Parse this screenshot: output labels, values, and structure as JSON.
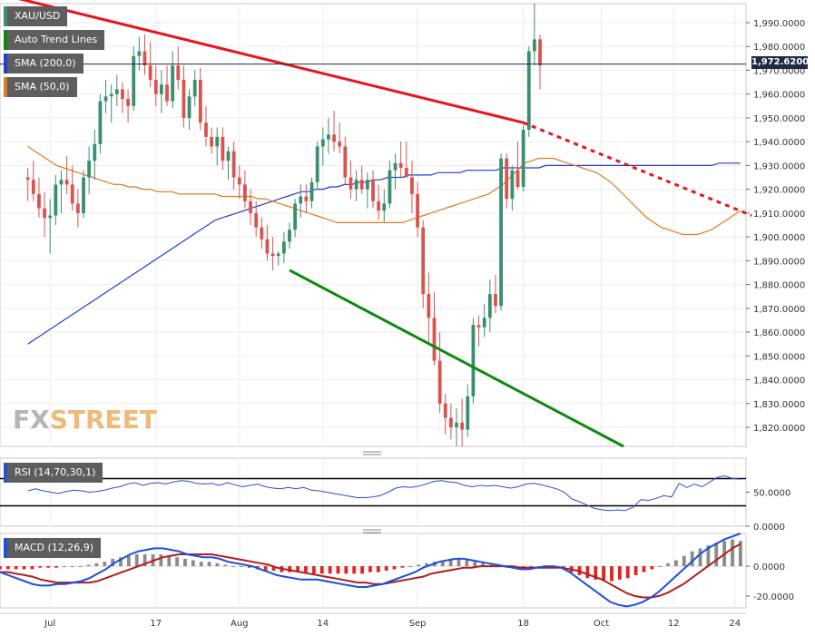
{
  "symbol": "XAU/USD",
  "legend": {
    "trend_lines": "Auto Trend Lines",
    "sma200": "SMA (200,0)",
    "sma50": "SMA (50,0)",
    "rsi": "RSI (14,70,30,1)",
    "macd": "MACD (12,26,9)"
  },
  "colors": {
    "bull": "#3a8f6e",
    "bear": "#d9534f",
    "sma200": "#1f3fcf",
    "sma50": "#e07a1f",
    "resistance": "#e8141c",
    "support": "#0d8a0d",
    "rsi": "#2b4fd6",
    "macd_line": "#1a4fe0",
    "signal_line": "#b21c1c",
    "hist_pos": "#8a8a8a",
    "hist_neg": "#e82020"
  },
  "logo": {
    "part1": "FX",
    "part2": "STREET"
  },
  "last_price": "1,972.6200",
  "chart_data": [
    {
      "type": "candlestick",
      "title": "XAU/USD",
      "y_ticks": [
        "1,990.0000",
        "1,980.0000",
        "1,970.0000",
        "1,960.0000",
        "1,950.0000",
        "1,940.0000",
        "1,930.0000",
        "1,920.0000",
        "1,910.0000",
        "1,900.0000",
        "1,890.0000",
        "1,880.0000",
        "1,870.0000",
        "1,860.0000",
        "1,850.0000",
        "1,840.0000",
        "1,830.0000",
        "1,820.0000"
      ],
      "x_ticks": [
        {
          "label": "Jul",
          "index": 4
        },
        {
          "label": "17",
          "index": 23
        },
        {
          "label": "Aug",
          "index": 38
        },
        {
          "label": "14",
          "index": 53
        },
        {
          "label": "Sep",
          "index": 70
        },
        {
          "label": "18",
          "index": 89
        },
        {
          "label": "Oct",
          "index": 103
        },
        {
          "label": "12",
          "index": 116
        },
        {
          "label": "24",
          "index": 127
        }
      ],
      "ylim": [
        1812,
        1998
      ],
      "ohlc": [
        [
          1925,
          1929,
          1915,
          1924
        ],
        [
          1924,
          1932,
          1915,
          1918
        ],
        [
          1918,
          1925,
          1908,
          1912
        ],
        [
          1912,
          1919,
          1900,
          1908
        ],
        [
          1908,
          1916,
          1893,
          1909
        ],
        [
          1909,
          1926,
          1905,
          1922
        ],
        [
          1922,
          1928,
          1910,
          1924
        ],
        [
          1924,
          1934,
          1918,
          1922
        ],
        [
          1922,
          1930,
          1911,
          1914
        ],
        [
          1914,
          1920,
          1904,
          1910
        ],
        [
          1910,
          1928,
          1908,
          1925
        ],
        [
          1925,
          1938,
          1918,
          1932
        ],
        [
          1932,
          1945,
          1924,
          1939
        ],
        [
          1939,
          1960,
          1935,
          1957
        ],
        [
          1957,
          1966,
          1952,
          1959
        ],
        [
          1959,
          1964,
          1948,
          1960
        ],
        [
          1960,
          1968,
          1955,
          1962
        ],
        [
          1962,
          1965,
          1952,
          1958
        ],
        [
          1958,
          1962,
          1948,
          1955
        ],
        [
          1955,
          1980,
          1953,
          1976
        ],
        [
          1976,
          1984,
          1970,
          1978
        ],
        [
          1978,
          1985,
          1968,
          1972
        ],
        [
          1972,
          1982,
          1963,
          1966
        ],
        [
          1966,
          1972,
          1955,
          1960
        ],
        [
          1960,
          1970,
          1952,
          1964
        ],
        [
          1964,
          1972,
          1955,
          1957
        ],
        [
          1957,
          1978,
          1954,
          1972
        ],
        [
          1972,
          1980,
          1962,
          1966
        ],
        [
          1966,
          1972,
          1946,
          1950
        ],
        [
          1950,
          1962,
          1945,
          1959
        ],
        [
          1959,
          1970,
          1955,
          1966
        ],
        [
          1966,
          1971,
          1945,
          1948
        ],
        [
          1948,
          1955,
          1938,
          1942
        ],
        [
          1942,
          1946,
          1935,
          1938
        ],
        [
          1938,
          1946,
          1930,
          1942
        ],
        [
          1942,
          1946,
          1928,
          1932
        ],
        [
          1932,
          1938,
          1924,
          1936
        ],
        [
          1936,
          1940,
          1920,
          1925
        ],
        [
          1925,
          1930,
          1916,
          1922
        ],
        [
          1922,
          1928,
          1912,
          1915
        ],
        [
          1915,
          1920,
          1905,
          1910
        ],
        [
          1910,
          1915,
          1900,
          1904
        ],
        [
          1904,
          1908,
          1895,
          1899
        ],
        [
          1899,
          1905,
          1890,
          1893
        ],
        [
          1893,
          1900,
          1886,
          1892
        ],
        [
          1892,
          1894,
          1888,
          1893
        ],
        [
          1893,
          1902,
          1889,
          1898
        ],
        [
          1898,
          1906,
          1895,
          1903
        ],
        [
          1903,
          1916,
          1900,
          1914
        ],
        [
          1914,
          1922,
          1908,
          1917
        ],
        [
          1917,
          1922,
          1910,
          1915
        ],
        [
          1915,
          1925,
          1912,
          1923
        ],
        [
          1923,
          1940,
          1920,
          1938
        ],
        [
          1938,
          1946,
          1930,
          1941
        ],
        [
          1941,
          1950,
          1935,
          1943
        ],
        [
          1943,
          1953,
          1936,
          1940
        ],
        [
          1940,
          1948,
          1935,
          1938
        ],
        [
          1938,
          1942,
          1922,
          1925
        ],
        [
          1925,
          1932,
          1916,
          1920
        ],
        [
          1920,
          1928,
          1915,
          1924
        ],
        [
          1924,
          1930,
          1918,
          1920
        ],
        [
          1920,
          1927,
          1912,
          1924
        ],
        [
          1924,
          1928,
          1912,
          1915
        ],
        [
          1915,
          1922,
          1907,
          1911
        ],
        [
          1911,
          1920,
          1906,
          1914
        ],
        [
          1914,
          1932,
          1912,
          1928
        ],
        [
          1928,
          1935,
          1920,
          1931
        ],
        [
          1931,
          1940,
          1925,
          1929
        ],
        [
          1929,
          1940,
          1926,
          1925
        ],
        [
          1925,
          1932,
          1910,
          1918
        ],
        [
          1918,
          1923,
          1900,
          1904
        ],
        [
          1904,
          1907,
          1870,
          1876
        ],
        [
          1876,
          1885,
          1855,
          1866
        ],
        [
          1866,
          1877,
          1846,
          1848
        ],
        [
          1848,
          1860,
          1826,
          1830
        ],
        [
          1830,
          1834,
          1817,
          1824
        ],
        [
          1824,
          1830,
          1815,
          1820
        ],
        [
          1820,
          1828,
          1812,
          1822
        ],
        [
          1822,
          1832,
          1812,
          1819
        ],
        [
          1819,
          1838,
          1816,
          1833
        ],
        [
          1833,
          1866,
          1830,
          1863
        ],
        [
          1863,
          1867,
          1854,
          1862
        ],
        [
          1862,
          1872,
          1858,
          1866
        ],
        [
          1866,
          1882,
          1860,
          1876
        ],
        [
          1876,
          1884,
          1868,
          1871
        ],
        [
          1871,
          1935,
          1869,
          1933
        ],
        [
          1933,
          1935,
          1912,
          1916
        ],
        [
          1916,
          1930,
          1911,
          1928
        ],
        [
          1928,
          1940,
          1920,
          1921
        ],
        [
          1921,
          1947,
          1919,
          1945
        ],
        [
          1945,
          1980,
          1942,
          1978
        ],
        [
          1978,
          1998,
          1972,
          1983
        ],
        [
          1983,
          1985,
          1962,
          1972
        ]
      ],
      "sma50": [
        1938,
        1936,
        1934,
        1932,
        1930,
        1929,
        1928,
        1927,
        1926,
        1925,
        1924,
        1923,
        1922,
        1922,
        1921,
        1921,
        1920,
        1920,
        1919,
        1919,
        1919,
        1918,
        1918,
        1918,
        1918,
        1918,
        1918,
        1917,
        1917,
        1917,
        1917,
        1917,
        1916,
        1916,
        1915,
        1914,
        1913,
        1912,
        1911,
        1910,
        1909,
        1908,
        1907,
        1906,
        1906,
        1906,
        1906,
        1906,
        1906,
        1906,
        1906,
        1906,
        1906,
        1907,
        1908,
        1909,
        1910,
        1911,
        1912,
        1913,
        1914,
        1915,
        1916,
        1917,
        1918,
        1920,
        1922,
        1925,
        1928,
        1931,
        1932,
        1933,
        1933,
        1933,
        1932,
        1931,
        1930,
        1929,
        1928,
        1927,
        1925,
        1923,
        1920,
        1917,
        1914,
        1911,
        1908,
        1906,
        1904,
        1903,
        1902,
        1901,
        1901,
        1901,
        1902,
        1903,
        1905,
        1907,
        1909,
        1911
      ],
      "sma200": [
        1855,
        1857,
        1859,
        1861,
        1863,
        1865,
        1867,
        1869,
        1871,
        1873,
        1875,
        1877,
        1879,
        1881,
        1883,
        1885,
        1887,
        1889,
        1891,
        1893,
        1895,
        1897,
        1899,
        1901,
        1903,
        1905,
        1907,
        1908,
        1909,
        1910,
        1911,
        1912,
        1913,
        1914,
        1915,
        1916,
        1917,
        1918,
        1919,
        1919,
        1920,
        1920,
        1921,
        1921,
        1922,
        1922,
        1923,
        1923,
        1924,
        1924,
        1925,
        1925,
        1925,
        1926,
        1926,
        1926,
        1926,
        1927,
        1927,
        1927,
        1927,
        1928,
        1928,
        1928,
        1928,
        1928,
        1929,
        1929,
        1929,
        1929,
        1929,
        1929,
        1930,
        1930,
        1930,
        1930,
        1930,
        1930,
        1930,
        1930,
        1930,
        1930,
        1930,
        1930,
        1930,
        1930,
        1930,
        1930,
        1930,
        1930,
        1930,
        1930,
        1930,
        1930,
        1930,
        1930,
        1931,
        1931,
        1931,
        1931
      ],
      "sma_x_range": [
        0,
        128
      ],
      "resistance_line": {
        "x1": -5,
        "y1": 2002,
        "x2": 89,
        "y2": 1948,
        "x_end": 130,
        "y_end": 1909
      },
      "support_line": {
        "x1": 47,
        "y1": 1886,
        "x2": 107,
        "y2": 1812
      },
      "last_price": 1972.62
    },
    {
      "type": "line",
      "title": "RSI (14,70,30,1)",
      "y_ticks": [
        "50.0000",
        "0.0000"
      ],
      "ylim": [
        0,
        100
      ],
      "levels": [
        70,
        30
      ],
      "values": [
        52,
        55,
        52,
        50,
        48,
        51,
        53,
        52,
        50,
        51,
        53,
        56,
        58,
        62,
        64,
        60,
        63,
        64,
        62,
        65,
        67,
        66,
        63,
        62,
        63,
        60,
        64,
        61,
        58,
        60,
        62,
        58,
        56,
        55,
        57,
        55,
        57,
        53,
        52,
        50,
        48,
        46,
        44,
        42,
        42,
        43,
        45,
        50,
        56,
        58,
        57,
        59,
        62,
        66,
        67,
        65,
        64,
        60,
        58,
        60,
        59,
        60,
        58,
        56,
        58,
        62,
        63,
        61,
        58,
        55,
        50,
        40,
        36,
        31,
        26,
        24,
        23,
        24,
        23,
        28,
        39,
        38,
        41,
        45,
        43,
        63,
        57,
        62,
        58,
        65,
        72,
        74,
        70,
        69
      ]
    },
    {
      "type": "bar",
      "title": "MACD (12,26,9)",
      "y_ticks": [
        "0.0000",
        "-20.0000"
      ],
      "ylim": [
        -28,
        22
      ],
      "histogram": [
        -2,
        -2,
        -2,
        -2,
        -2,
        -1,
        -1,
        -1,
        0,
        0,
        0,
        1,
        2,
        3,
        5,
        6,
        7,
        8,
        8,
        8,
        8,
        7,
        6,
        5,
        4,
        3,
        3,
        2,
        1,
        0,
        0,
        -1,
        -2,
        -3,
        -3,
        -4,
        -4,
        -4,
        -4,
        -5,
        -5,
        -5,
        -5,
        -5,
        -5,
        -5,
        -4,
        -4,
        -3,
        -2,
        -1,
        0,
        1,
        2,
        3,
        4,
        5,
        5,
        4,
        3,
        2,
        1,
        0,
        -1,
        -1,
        -1,
        -1,
        0,
        0,
        -1,
        -2,
        -4,
        -6,
        -8,
        -9,
        -10,
        -10,
        -9,
        -8,
        -6,
        -4,
        -2,
        0,
        2,
        4,
        7,
        10,
        12,
        14,
        16,
        17,
        18,
        17
      ],
      "macd_line": [
        -4,
        -6,
        -8,
        -10,
        -12,
        -13,
        -13,
        -12,
        -12,
        -11,
        -10,
        -8,
        -5,
        -2,
        2,
        5,
        8,
        10,
        11,
        12,
        12,
        11,
        10,
        8,
        7,
        6,
        6,
        5,
        3,
        2,
        1,
        0,
        -2,
        -4,
        -6,
        -7,
        -8,
        -9,
        -9,
        -9,
        -10,
        -11,
        -12,
        -13,
        -14,
        -14,
        -13,
        -12,
        -10,
        -8,
        -6,
        -4,
        -1,
        1,
        3,
        4,
        5,
        5,
        4,
        3,
        2,
        1,
        0,
        -1,
        -2,
        -2,
        -1,
        0,
        0,
        -1,
        -4,
        -8,
        -12,
        -16,
        -20,
        -24,
        -26,
        -27,
        -26,
        -24,
        -21,
        -17,
        -12,
        -7,
        -2,
        3,
        8,
        12,
        15,
        18,
        20,
        22
      ],
      "signal_line": [
        -4,
        -4,
        -5,
        -6,
        -7,
        -9,
        -10,
        -11,
        -11,
        -11,
        -11,
        -11,
        -10,
        -8,
        -6,
        -4,
        -2,
        0,
        2,
        4,
        6,
        7,
        8,
        8,
        8,
        8,
        8,
        7,
        6,
        5,
        4,
        3,
        2,
        1,
        -1,
        -2,
        -3,
        -4,
        -5,
        -6,
        -7,
        -8,
        -9,
        -10,
        -11,
        -11,
        -12,
        -12,
        -11,
        -10,
        -9,
        -8,
        -7,
        -5,
        -4,
        -3,
        -2,
        -1,
        -1,
        0,
        0,
        0,
        0,
        0,
        -1,
        -1,
        -1,
        -1,
        -1,
        -1,
        -2,
        -3,
        -5,
        -7,
        -9,
        -12,
        -15,
        -18,
        -20,
        -21,
        -21,
        -20,
        -18,
        -15,
        -12,
        -8,
        -4,
        0,
        4,
        8,
        12,
        15
      ]
    }
  ]
}
